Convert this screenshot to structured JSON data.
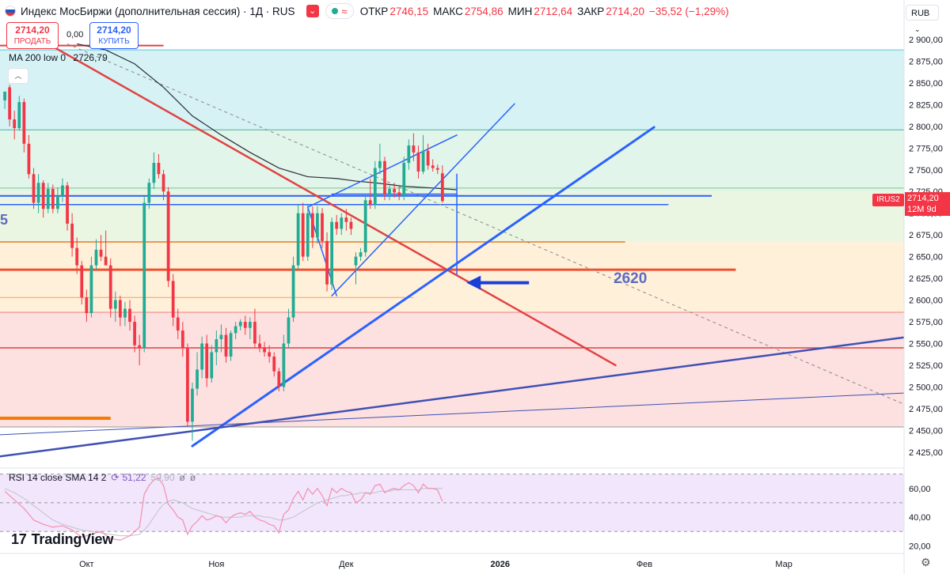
{
  "header": {
    "title": "Индекс МосБиржи (дополнительная сессия) · 1Д · RUS",
    "alert_icon": "chevron-down-icon",
    "open_label": "ОТКР",
    "open_value": "2746,15",
    "high_label": "МАКС",
    "high_value": "2754,86",
    "low_label": "МИН",
    "low_value": "2712,64",
    "close_label": "ЗАКР",
    "close_value": "2714,20",
    "change_value": "−35,52 (−1,29%)"
  },
  "trade": {
    "sell_price": "2714,20",
    "sell_label": "ПРОДАТЬ",
    "buy_price": "2714,20",
    "buy_label": "КУПИТЬ",
    "spread": "0,00"
  },
  "indicator_ma": {
    "label": "MA 200 low 0",
    "value": "2726,79"
  },
  "indicator_rsi": {
    "label": "RSI 14 close SMA 14 2",
    "value": "51,22",
    "value2": "59,90"
  },
  "currency": "RUB",
  "last_price": {
    "symbol_tag": "IRUS2",
    "price": "2714,20",
    "countdown": "12M 9d"
  },
  "annotation": "2620",
  "edge_text": "5",
  "brand": "TradingView",
  "colors": {
    "up": "#22ab94",
    "down": "#f23645",
    "trendline": "#2962ff",
    "redline": "#e04343",
    "orange": "#f57c00"
  },
  "chart_data": {
    "type": "candlestick",
    "y_ticks": [
      "2 900,00",
      "2 875,00",
      "2 850,00",
      "2 825,00",
      "2 800,00",
      "2 775,00",
      "2 750,00",
      "2 725,00",
      "2 700,00",
      "2 675,00",
      "2 650,00",
      "2 625,00",
      "2 600,00",
      "2 575,00",
      "2 550,00",
      "2 525,00",
      "2 500,00",
      "2 475,00",
      "2 450,00",
      "2 425,00"
    ],
    "y_tick_values": [
      2900,
      2875,
      2850,
      2825,
      2800,
      2775,
      2750,
      2725,
      2700,
      2675,
      2650,
      2625,
      2600,
      2575,
      2550,
      2525,
      2500,
      2475,
      2450,
      2425
    ],
    "ylim": [
      2413,
      2920
    ],
    "x_labels": [
      "Окт",
      "Ноя",
      "Дек",
      "2026",
      "Фев",
      "Мар"
    ],
    "x_label_positions": [
      0,
      27,
      54,
      86,
      116,
      145
    ],
    "x_range": [
      -18,
      170
    ],
    "rsi_ticks": [
      "60,00",
      "40,00",
      "20,00"
    ],
    "rsi_tick_values": [
      60,
      40,
      20
    ],
    "rsi_ylim": [
      18,
      72
    ],
    "rsi_band": [
      30,
      70
    ],
    "zones": [
      {
        "from": 2888,
        "to": 2796,
        "color": "#d6f2f5"
      },
      {
        "from": 2796,
        "to": 2725,
        "color": "#e2f5ea"
      },
      {
        "from": 2725,
        "to": 2667,
        "color": "#eaf6e1"
      },
      {
        "from": 2667,
        "to": 2586,
        "color": "#fff0da"
      },
      {
        "from": 2586,
        "to": 2454,
        "color": "#fde0e0"
      }
    ],
    "levels": [
      {
        "y": 2888,
        "x0": -18,
        "x1": 170,
        "color": "#5ec3d6",
        "w": 1
      },
      {
        "y": 2796,
        "x0": -18,
        "x1": 170,
        "color": "#4bb3a0",
        "w": 1
      },
      {
        "y": 2729,
        "x0": -18,
        "x1": 170,
        "color": "#7bc77f",
        "w": 1
      },
      {
        "y": 2667,
        "x0": -18,
        "x1": 112,
        "color": "#e8792b",
        "w": 1.5
      },
      {
        "y": 2635,
        "x0": -18,
        "x1": 135,
        "color": "#f0502f",
        "w": 3
      },
      {
        "y": 2603,
        "x0": -18,
        "x1": 68,
        "color": "#f4a261",
        "w": 1
      },
      {
        "y": 2586,
        "x0": -18,
        "x1": 170,
        "color": "#f08080",
        "w": 1
      },
      {
        "y": 2545,
        "x0": -18,
        "x1": 170,
        "color": "#e04343",
        "w": 1.5
      },
      {
        "y": 2454,
        "x0": -18,
        "x1": 170,
        "color": "#999999",
        "w": 1
      },
      {
        "y": 2720,
        "x0": -18,
        "x1": 130,
        "color": "#2962ff",
        "w": 2
      },
      {
        "y": 2710,
        "x0": -18,
        "x1": 121,
        "color": "#2962ff",
        "w": 1.5
      },
      {
        "y": 2464,
        "x0": -18,
        "x1": 5,
        "color": "#f57c00",
        "w": 4
      },
      {
        "y": 2893,
        "x0": -18,
        "x1": 16,
        "color": "#e04343",
        "w": 2
      }
    ],
    "lines": [
      {
        "x": [
          -8,
          110
        ],
        "y": [
          2895,
          2525
        ],
        "color": "#e04343",
        "w": 2.5
      },
      {
        "x": [
          22,
          118
        ],
        "y": [
          2432,
          2799
        ],
        "color": "#2962ff",
        "w": 3
      },
      {
        "x": [
          -18,
          170
        ],
        "y": [
          2420,
          2557
        ],
        "color": "#3f51b5",
        "w": 2.5
      },
      {
        "x": [
          -18,
          170
        ],
        "y": [
          2445,
          2493
        ],
        "color": "#3f51b5",
        "w": 1
      },
      {
        "x": [
          51,
          89
        ],
        "y": [
          2605,
          2826
        ],
        "color": "#2962ff",
        "w": 1.5
      },
      {
        "x": [
          46,
          77
        ],
        "y": [
          2707,
          2790
        ],
        "color": "#2962ff",
        "w": 1.5
      },
      {
        "x": [
          46,
          52
        ],
        "y": [
          2707,
          2605
        ],
        "color": "#2962ff",
        "w": 1.5
      },
      {
        "x": [
          51,
          77
        ],
        "y": [
          2722,
          2722
        ],
        "color": "#2962ff",
        "w": 1.5
      },
      {
        "x": [
          77,
          77
        ],
        "y": [
          2745,
          2630
        ],
        "color": "#2962ff",
        "w": 1.5
      }
    ],
    "dashed": {
      "x": [
        -4,
        170
      ],
      "y": [
        2895,
        2480
      ],
      "color": "#888888"
    },
    "arrow": {
      "x_from": 92,
      "x_to": 79,
      "y": 2620,
      "color": "#1a3fd6"
    },
    "ma200": {
      "x": [
        -2,
        4,
        10,
        16,
        22,
        28,
        34,
        40,
        46,
        52,
        56,
        60,
        66,
        72,
        77
      ],
      "y": [
        2895,
        2888,
        2872,
        2845,
        2812,
        2790,
        2770,
        2752,
        2742,
        2740,
        2737,
        2735,
        2731,
        2729,
        2727
      ]
    },
    "candles": [
      {
        "x": -17,
        "o": 2830,
        "h": 2840,
        "l": 2820,
        "c": 2840
      },
      {
        "x": -16,
        "o": 2845,
        "h": 2848,
        "l": 2800,
        "c": 2808
      },
      {
        "x": -15,
        "o": 2808,
        "h": 2818,
        "l": 2785,
        "c": 2798
      },
      {
        "x": -14,
        "o": 2798,
        "h": 2835,
        "l": 2795,
        "c": 2828
      },
      {
        "x": -13,
        "o": 2828,
        "h": 2832,
        "l": 2770,
        "c": 2780
      },
      {
        "x": -12,
        "o": 2780,
        "h": 2790,
        "l": 2740,
        "c": 2745
      },
      {
        "x": -11,
        "o": 2745,
        "h": 2752,
        "l": 2705,
        "c": 2712
      },
      {
        "x": -10,
        "o": 2712,
        "h": 2745,
        "l": 2700,
        "c": 2735
      },
      {
        "x": -9,
        "o": 2735,
        "h": 2738,
        "l": 2695,
        "c": 2705
      },
      {
        "x": -8,
        "o": 2705,
        "h": 2735,
        "l": 2700,
        "c": 2728
      },
      {
        "x": -7,
        "o": 2728,
        "h": 2733,
        "l": 2700,
        "c": 2705
      },
      {
        "x": -6,
        "o": 2705,
        "h": 2730,
        "l": 2700,
        "c": 2720
      },
      {
        "x": -5,
        "o": 2720,
        "h": 2740,
        "l": 2713,
        "c": 2732
      },
      {
        "x": -4,
        "o": 2732,
        "h": 2736,
        "l": 2680,
        "c": 2688
      },
      {
        "x": -3,
        "o": 2688,
        "h": 2700,
        "l": 2650,
        "c": 2660
      },
      {
        "x": -2,
        "o": 2660,
        "h": 2672,
        "l": 2630,
        "c": 2640
      },
      {
        "x": -1,
        "o": 2640,
        "h": 2645,
        "l": 2595,
        "c": 2603
      },
      {
        "x": 0,
        "o": 2603,
        "h": 2612,
        "l": 2575,
        "c": 2585
      },
      {
        "x": 1,
        "o": 2585,
        "h": 2650,
        "l": 2580,
        "c": 2640
      },
      {
        "x": 2,
        "o": 2640,
        "h": 2670,
        "l": 2635,
        "c": 2658
      },
      {
        "x": 3,
        "o": 2658,
        "h": 2675,
        "l": 2645,
        "c": 2650
      },
      {
        "x": 4,
        "o": 2650,
        "h": 2680,
        "l": 2640,
        "c": 2640
      },
      {
        "x": 5,
        "o": 2640,
        "h": 2648,
        "l": 2580,
        "c": 2590
      },
      {
        "x": 6,
        "o": 2590,
        "h": 2610,
        "l": 2575,
        "c": 2600
      },
      {
        "x": 7,
        "o": 2600,
        "h": 2605,
        "l": 2570,
        "c": 2580
      },
      {
        "x": 8,
        "o": 2580,
        "h": 2598,
        "l": 2570,
        "c": 2590
      },
      {
        "x": 9,
        "o": 2590,
        "h": 2600,
        "l": 2565,
        "c": 2575
      },
      {
        "x": 10,
        "o": 2575,
        "h": 2582,
        "l": 2540,
        "c": 2548
      },
      {
        "x": 11,
        "o": 2548,
        "h": 2560,
        "l": 2525,
        "c": 2545
      },
      {
        "x": 12,
        "o": 2545,
        "h": 2720,
        "l": 2540,
        "c": 2712
      },
      {
        "x": 13,
        "o": 2712,
        "h": 2740,
        "l": 2705,
        "c": 2735
      },
      {
        "x": 14,
        "o": 2735,
        "h": 2770,
        "l": 2728,
        "c": 2758
      },
      {
        "x": 15,
        "o": 2758,
        "h": 2768,
        "l": 2740,
        "c": 2745
      },
      {
        "x": 16,
        "o": 2745,
        "h": 2750,
        "l": 2715,
        "c": 2725
      },
      {
        "x": 17,
        "o": 2725,
        "h": 2730,
        "l": 2615,
        "c": 2622
      },
      {
        "x": 18,
        "o": 2622,
        "h": 2630,
        "l": 2570,
        "c": 2580
      },
      {
        "x": 19,
        "o": 2580,
        "h": 2590,
        "l": 2555,
        "c": 2565
      },
      {
        "x": 20,
        "o": 2565,
        "h": 2575,
        "l": 2535,
        "c": 2545
      },
      {
        "x": 21,
        "o": 2545,
        "h": 2550,
        "l": 2455,
        "c": 2460
      },
      {
        "x": 22,
        "o": 2460,
        "h": 2505,
        "l": 2438,
        "c": 2498
      },
      {
        "x": 23,
        "o": 2498,
        "h": 2540,
        "l": 2490,
        "c": 2520
      },
      {
        "x": 24,
        "o": 2520,
        "h": 2558,
        "l": 2510,
        "c": 2550
      },
      {
        "x": 25,
        "o": 2550,
        "h": 2560,
        "l": 2500,
        "c": 2510
      },
      {
        "x": 26,
        "o": 2510,
        "h": 2548,
        "l": 2505,
        "c": 2540
      },
      {
        "x": 27,
        "o": 2540,
        "h": 2565,
        "l": 2525,
        "c": 2555
      },
      {
        "x": 28,
        "o": 2555,
        "h": 2572,
        "l": 2540,
        "c": 2560
      },
      {
        "x": 29,
        "o": 2560,
        "h": 2568,
        "l": 2528,
        "c": 2535
      },
      {
        "x": 30,
        "o": 2535,
        "h": 2565,
        "l": 2530,
        "c": 2562
      },
      {
        "x": 31,
        "o": 2562,
        "h": 2575,
        "l": 2555,
        "c": 2570
      },
      {
        "x": 32,
        "o": 2570,
        "h": 2578,
        "l": 2565,
        "c": 2575
      },
      {
        "x": 33,
        "o": 2575,
        "h": 2582,
        "l": 2560,
        "c": 2568
      },
      {
        "x": 34,
        "o": 2568,
        "h": 2580,
        "l": 2555,
        "c": 2575
      },
      {
        "x": 35,
        "o": 2575,
        "h": 2590,
        "l": 2545,
        "c": 2550
      },
      {
        "x": 36,
        "o": 2550,
        "h": 2560,
        "l": 2540,
        "c": 2545
      },
      {
        "x": 37,
        "o": 2545,
        "h": 2552,
        "l": 2535,
        "c": 2540
      },
      {
        "x": 38,
        "o": 2540,
        "h": 2548,
        "l": 2528,
        "c": 2535
      },
      {
        "x": 39,
        "o": 2535,
        "h": 2540,
        "l": 2512,
        "c": 2518
      },
      {
        "x": 40,
        "o": 2518,
        "h": 2522,
        "l": 2495,
        "c": 2500
      },
      {
        "x": 41,
        "o": 2500,
        "h": 2560,
        "l": 2495,
        "c": 2550
      },
      {
        "x": 42,
        "o": 2550,
        "h": 2590,
        "l": 2545,
        "c": 2580
      },
      {
        "x": 43,
        "o": 2580,
        "h": 2650,
        "l": 2575,
        "c": 2640
      },
      {
        "x": 44,
        "o": 2640,
        "h": 2710,
        "l": 2635,
        "c": 2700
      },
      {
        "x": 45,
        "o": 2700,
        "h": 2712,
        "l": 2645,
        "c": 2650
      },
      {
        "x": 46,
        "o": 2650,
        "h": 2710,
        "l": 2645,
        "c": 2700
      },
      {
        "x": 47,
        "o": 2700,
        "h": 2708,
        "l": 2660,
        "c": 2672
      },
      {
        "x": 48,
        "o": 2672,
        "h": 2708,
        "l": 2665,
        "c": 2700
      },
      {
        "x": 49,
        "o": 2700,
        "h": 2706,
        "l": 2660,
        "c": 2668
      },
      {
        "x": 50,
        "o": 2668,
        "h": 2678,
        "l": 2610,
        "c": 2618
      },
      {
        "x": 51,
        "o": 2618,
        "h": 2695,
        "l": 2612,
        "c": 2690
      },
      {
        "x": 52,
        "o": 2690,
        "h": 2698,
        "l": 2675,
        "c": 2682
      },
      {
        "x": 53,
        "o": 2682,
        "h": 2700,
        "l": 2675,
        "c": 2695
      },
      {
        "x": 54,
        "o": 2695,
        "h": 2705,
        "l": 2680,
        "c": 2690
      },
      {
        "x": 55,
        "o": 2690,
        "h": 2695,
        "l": 2675,
        "c": 2682
      },
      {
        "x": 56,
        "o": 2640,
        "h": 2655,
        "l": 2618,
        "c": 2650
      },
      {
        "x": 57,
        "o": 2650,
        "h": 2660,
        "l": 2645,
        "c": 2655
      },
      {
        "x": 58,
        "o": 2655,
        "h": 2720,
        "l": 2650,
        "c": 2715
      },
      {
        "x": 59,
        "o": 2715,
        "h": 2740,
        "l": 2705,
        "c": 2710
      },
      {
        "x": 60,
        "o": 2710,
        "h": 2760,
        "l": 2705,
        "c": 2752
      },
      {
        "x": 61,
        "o": 2752,
        "h": 2780,
        "l": 2745,
        "c": 2760
      },
      {
        "x": 62,
        "o": 2760,
        "h": 2765,
        "l": 2715,
        "c": 2722
      },
      {
        "x": 63,
        "o": 2722,
        "h": 2732,
        "l": 2715,
        "c": 2728
      },
      {
        "x": 64,
        "o": 2728,
        "h": 2735,
        "l": 2718,
        "c": 2724
      },
      {
        "x": 65,
        "o": 2724,
        "h": 2730,
        "l": 2715,
        "c": 2720
      },
      {
        "x": 66,
        "o": 2720,
        "h": 2765,
        "l": 2715,
        "c": 2758
      },
      {
        "x": 67,
        "o": 2758,
        "h": 2785,
        "l": 2750,
        "c": 2778
      },
      {
        "x": 68,
        "o": 2778,
        "h": 2792,
        "l": 2760,
        "c": 2770
      },
      {
        "x": 69,
        "o": 2770,
        "h": 2778,
        "l": 2740,
        "c": 2748
      },
      {
        "x": 70,
        "o": 2748,
        "h": 2790,
        "l": 2745,
        "c": 2772
      },
      {
        "x": 71,
        "o": 2772,
        "h": 2780,
        "l": 2750,
        "c": 2755
      },
      {
        "x": 72,
        "o": 2755,
        "h": 2762,
        "l": 2748,
        "c": 2752
      },
      {
        "x": 73,
        "o": 2752,
        "h": 2756,
        "l": 2745,
        "c": 2750
      },
      {
        "x": 74,
        "o": 2746,
        "h": 2755,
        "l": 2712,
        "c": 2714
      }
    ],
    "rsi": {
      "x": [
        -17,
        -15,
        -13,
        -11,
        -9,
        -7,
        -5,
        -3,
        -1,
        1,
        3,
        5,
        7,
        9,
        11,
        12,
        13,
        14,
        15,
        16,
        17,
        18,
        19,
        20,
        21,
        22,
        23,
        24,
        25,
        26,
        27,
        28,
        29,
        30,
        31,
        32,
        33,
        34,
        35,
        36,
        37,
        38,
        39,
        40,
        41,
        42,
        43,
        44,
        45,
        46,
        47,
        48,
        49,
        50,
        51,
        52,
        53,
        54,
        55,
        56,
        57,
        58,
        59,
        60,
        61,
        62,
        63,
        64,
        65,
        66,
        67,
        68,
        69,
        70,
        71,
        72,
        73,
        74
      ],
      "v": [
        58,
        52,
        46,
        38,
        35,
        33,
        34,
        31,
        26,
        28,
        30,
        25,
        24,
        27,
        33,
        56,
        62,
        66,
        67,
        62,
        49,
        45,
        40,
        38,
        28,
        34,
        37,
        41,
        38,
        39,
        41,
        40,
        36,
        40,
        42,
        43,
        42,
        44,
        40,
        38,
        37,
        35,
        34,
        29,
        42,
        45,
        53,
        58,
        52,
        60,
        56,
        60,
        55,
        48,
        60,
        57,
        60,
        58,
        57,
        50,
        52,
        57,
        56,
        62,
        63,
        57,
        59,
        60,
        59,
        62,
        64,
        62,
        57,
        63,
        60,
        60,
        59,
        51
      ],
      "sma": [
        60,
        57,
        53,
        48,
        43,
        38,
        35,
        33,
        31,
        30,
        29,
        28,
        27,
        27,
        28,
        31,
        35,
        40,
        45,
        49,
        51,
        52,
        51,
        50,
        48,
        46,
        45,
        44,
        43,
        42,
        41,
        40,
        40,
        40,
        40,
        40,
        41,
        41,
        41,
        41,
        40,
        40,
        39,
        38,
        38,
        39,
        40,
        42,
        44,
        46,
        48,
        50,
        51,
        52,
        53,
        54,
        55,
        55,
        56,
        56,
        57,
        57,
        57,
        57,
        58,
        58,
        58,
        59,
        59,
        59,
        59,
        59,
        59,
        60,
        60,
        60,
        60,
        60
      ]
    }
  }
}
